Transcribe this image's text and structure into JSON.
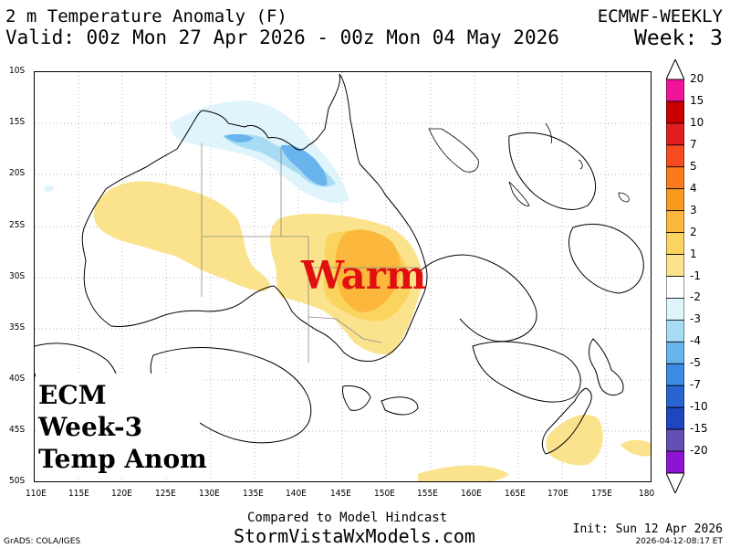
{
  "header": {
    "title": "2 m Temperature Anomaly (F)",
    "source": "ECMWF-WEEKLY",
    "valid": "Valid: 00z Mon 27 Apr 2026 - 00z Mon 04 May 2026",
    "week": "Week: 3"
  },
  "map": {
    "lat_labels": [
      "10S",
      "15S",
      "20S",
      "25S",
      "30S",
      "35S",
      "40S",
      "45S",
      "50S"
    ],
    "lon_labels": [
      "110E",
      "115E",
      "120E",
      "125E",
      "130E",
      "135E",
      "140E",
      "145E",
      "150E",
      "155E",
      "160E",
      "165E",
      "170E",
      "175E",
      "180"
    ],
    "overlay_word": "Warm",
    "overlay_word_color": "#e01010",
    "overlay_box": [
      "ECM",
      "Week-3",
      "Temp Anom"
    ]
  },
  "colorbar": {
    "labels": [
      "20",
      "15",
      "10",
      "7",
      "5",
      "4",
      "3",
      "2",
      "1",
      "-1",
      "-2",
      "-3",
      "-4",
      "-5",
      "-7",
      "-10",
      "-15",
      "-20"
    ],
    "colors": [
      "#f0149a",
      "#c80000",
      "#e01e1e",
      "#f54b1e",
      "#fa7a1e",
      "#fb9b1e",
      "#fbb83c",
      "#fbd35f",
      "#fae38c",
      "#ffffff",
      "#dff5fb",
      "#a8dcf4",
      "#6ab4ee",
      "#3c8ce6",
      "#2864d2",
      "#1e46be",
      "#6450b4",
      "#8c14d2"
    ]
  },
  "footer": {
    "compared": "Compared to Model Hindcast",
    "site": "StormVistaWxModels.com",
    "grads": "GrADS: COLA/IGES",
    "init": "Init: Sun 12 Apr 2026",
    "timestamp": "2026-04-12-08:17 ET"
  }
}
